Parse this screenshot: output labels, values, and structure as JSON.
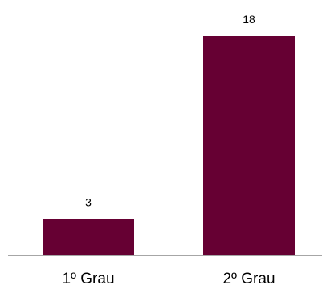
{
  "chart_data": {
    "type": "bar",
    "categories": [
      "1º Grau",
      "2º Grau"
    ],
    "values": [
      3,
      18
    ],
    "data_labels": [
      "3",
      "18"
    ],
    "title": "",
    "xlabel": "",
    "ylabel": "",
    "ylim": [
      0,
      18
    ],
    "grid": false,
    "legend": "none",
    "bar_color": "#660033",
    "axis_color": "#a6a6a6"
  }
}
